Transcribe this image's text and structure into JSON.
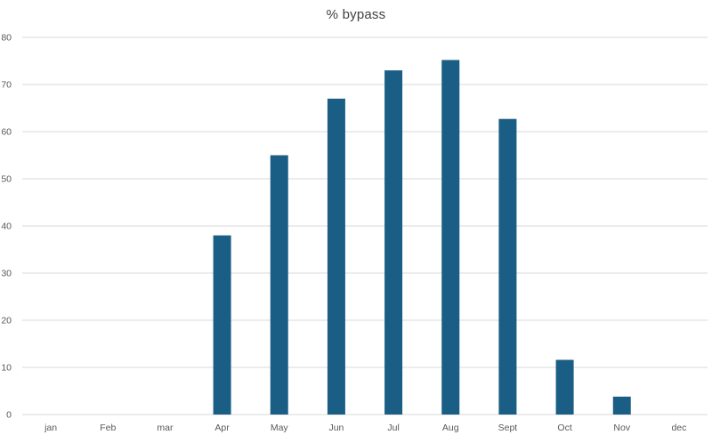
{
  "chart_data": {
    "type": "bar",
    "title": "% bypass",
    "xlabel": "",
    "ylabel": "",
    "categories": [
      "jan",
      "Feb",
      "mar",
      "Apr",
      "May",
      "Jun",
      "Jul",
      "Aug",
      "Sept",
      "Oct",
      "Nov",
      "dec"
    ],
    "values": [
      0,
      0,
      0,
      38,
      55,
      67,
      73,
      75.2,
      62.7,
      11.6,
      3.8,
      0
    ],
    "ylim": [
      0,
      80
    ],
    "yticks": [
      0,
      10,
      20,
      30,
      40,
      50,
      60,
      70,
      80
    ],
    "grid": true,
    "legend": "none",
    "bar_color": "#1b5e85",
    "grid_color": "#d9d9d9"
  }
}
